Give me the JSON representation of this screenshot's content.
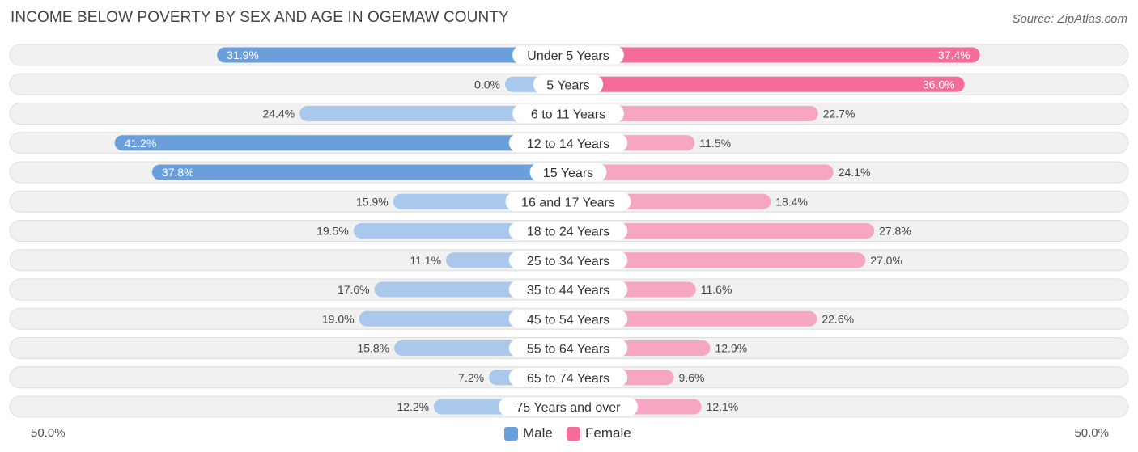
{
  "title": "INCOME BELOW POVERTY BY SEX AND AGE IN OGEMAW COUNTY",
  "source": "Source: ZipAtlas.com",
  "colors": {
    "male_strong": "#6a9fdc",
    "male_light": "#a9c8ec",
    "female_strong": "#f46c99",
    "female_light": "#f6a6c2",
    "row_bg": "#f1f1f1",
    "row_border": "#dedede"
  },
  "chart_data": {
    "type": "bar",
    "orientation": "horizontal-diverging",
    "title": "INCOME BELOW POVERTY BY SEX AND AGE IN OGEMAW COUNTY",
    "categories": [
      "Under 5 Years",
      "5 Years",
      "6 to 11 Years",
      "12 to 14 Years",
      "15 Years",
      "16 and 17 Years",
      "18 to 24 Years",
      "25 to 34 Years",
      "35 to 44 Years",
      "45 to 54 Years",
      "55 to 64 Years",
      "65 to 74 Years",
      "75 Years and over"
    ],
    "series": [
      {
        "name": "Male",
        "values": [
          31.9,
          0.0,
          24.4,
          41.2,
          37.8,
          15.9,
          19.5,
          11.1,
          17.6,
          19.0,
          15.8,
          7.2,
          12.2
        ],
        "labels": [
          "31.9%",
          "0.0%",
          "24.4%",
          "41.2%",
          "37.8%",
          "15.9%",
          "19.5%",
          "11.1%",
          "17.6%",
          "19.0%",
          "15.8%",
          "7.2%",
          "12.2%"
        ]
      },
      {
        "name": "Female",
        "values": [
          37.4,
          36.0,
          22.7,
          11.5,
          24.1,
          18.4,
          27.8,
          27.0,
          11.6,
          22.6,
          12.9,
          9.6,
          12.1
        ],
        "labels": [
          "37.4%",
          "36.0%",
          "22.7%",
          "11.5%",
          "24.1%",
          "18.4%",
          "27.8%",
          "27.0%",
          "11.6%",
          "22.6%",
          "12.9%",
          "9.6%",
          "12.1%"
        ]
      }
    ],
    "xlim": [
      -50,
      50
    ],
    "axis_min_label": "50.0%",
    "axis_max_label": "50.0%",
    "legend": [
      "Male",
      "Female"
    ]
  }
}
